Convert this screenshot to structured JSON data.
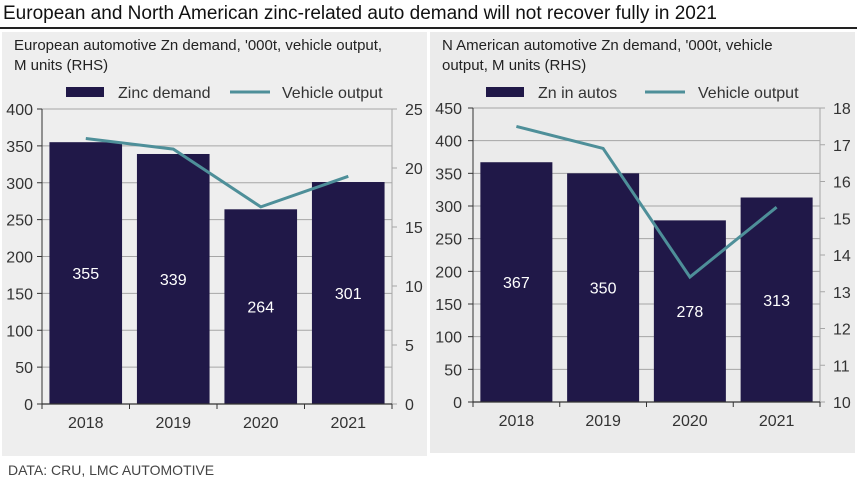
{
  "title": "European and North American zinc-related auto demand will not recover fully in 2021",
  "source": "DATA: CRU, LMC AUTOMOTIVE",
  "colors": {
    "bar": "#201848",
    "line": "#4e8f99",
    "grid": "#a6a6a6",
    "axis": "#333333",
    "bar_label": "#ffffff"
  },
  "chart_data": [
    {
      "id": "europe",
      "type": "bar+line",
      "title": "European automotive Zn demand, '000t, vehicle output, M units (RHS)",
      "title_lines": [
        "European automotive Zn demand, '000t, vehicle output,",
        "M units (RHS)"
      ],
      "categories": [
        "2018",
        "2019",
        "2020",
        "2021"
      ],
      "series": [
        {
          "name": "Zinc demand",
          "type": "bar",
          "axis": "left",
          "values": [
            355,
            339,
            264,
            301
          ],
          "labels": [
            "355",
            "339",
            "264",
            "301"
          ]
        },
        {
          "name": "Vehicle output",
          "type": "line",
          "axis": "right",
          "values": [
            22.5,
            21.6,
            16.7,
            19.3
          ]
        }
      ],
      "ylim_left": [
        0,
        400
      ],
      "yticks_left": [
        "0",
        "50",
        "100",
        "150",
        "200",
        "250",
        "300",
        "350",
        "400"
      ],
      "ylim_right": [
        0,
        25
      ],
      "yticks_right": [
        "0",
        "5",
        "10",
        "15",
        "20",
        "25"
      ],
      "grid": true,
      "legend_position": "top"
    },
    {
      "id": "north-america",
      "type": "bar+line",
      "title": "N American automotive Zn demand, '000t, vehicle output, M units (RHS)",
      "title_lines": [
        "N American automotive Zn demand, '000t, vehicle",
        "output, M units (RHS)"
      ],
      "categories": [
        "2018",
        "2019",
        "2020",
        "2021"
      ],
      "series": [
        {
          "name": "Zn in autos",
          "type": "bar",
          "axis": "left",
          "values": [
            367,
            350,
            278,
            313
          ],
          "labels": [
            "367",
            "350",
            "278",
            "313"
          ]
        },
        {
          "name": "Vehicle output",
          "type": "line",
          "axis": "right",
          "values": [
            17.5,
            16.9,
            13.4,
            15.3
          ]
        }
      ],
      "ylim_left": [
        0,
        450
      ],
      "yticks_left": [
        "0",
        "50",
        "100",
        "150",
        "200",
        "250",
        "300",
        "350",
        "400",
        "450"
      ],
      "ylim_right": [
        10,
        18
      ],
      "yticks_right": [
        "10",
        "11",
        "12",
        "13",
        "14",
        "15",
        "16",
        "17",
        "18"
      ],
      "grid": true,
      "legend_position": "top"
    }
  ]
}
